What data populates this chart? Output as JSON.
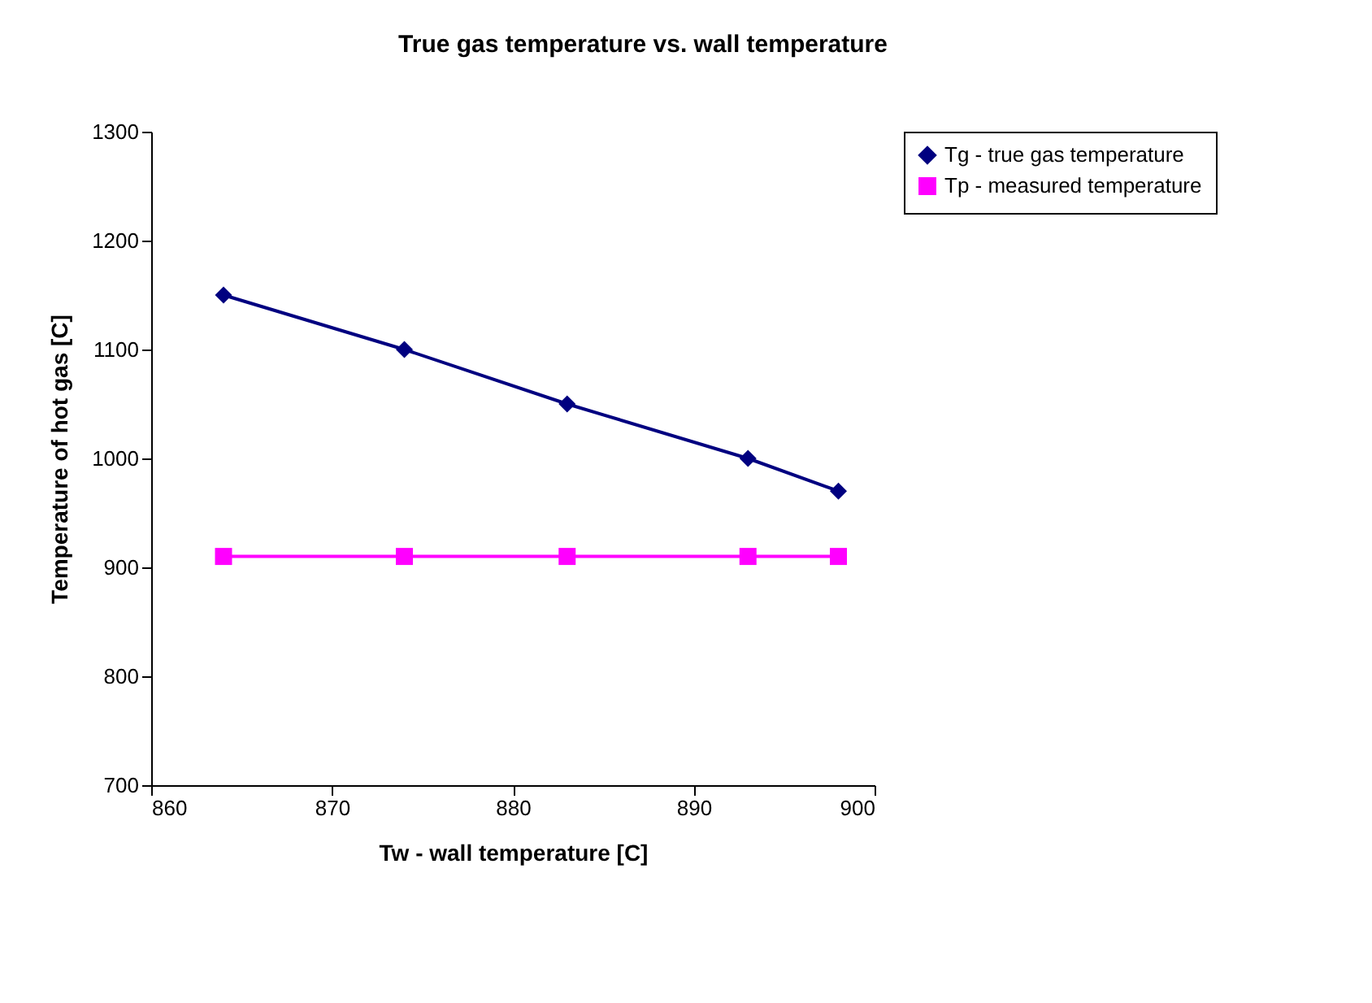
{
  "chart_data": {
    "type": "line",
    "title": "True gas temperature vs. wall temperature",
    "xlabel": "Tw - wall temperature [C]",
    "ylabel": "Temperature of hot gas [C]",
    "x": [
      864,
      874,
      883,
      893,
      898
    ],
    "series": [
      {
        "name": "Tg - true gas temperature",
        "color": "#000080",
        "marker": "diamond",
        "values": [
          1150,
          1100,
          1050,
          1000,
          970
        ]
      },
      {
        "name": "Tp - measured temperature",
        "color": "#ff00ff",
        "marker": "square",
        "values": [
          910,
          910,
          910,
          910,
          910
        ]
      }
    ],
    "xlim": [
      860,
      900
    ],
    "xticks": [
      860,
      870,
      880,
      890,
      900
    ],
    "ylim": [
      700,
      1300
    ],
    "yticks": [
      700,
      800,
      900,
      1000,
      1100,
      1200,
      1300
    ],
    "grid": false,
    "legend": "right",
    "line_style": "solid"
  }
}
